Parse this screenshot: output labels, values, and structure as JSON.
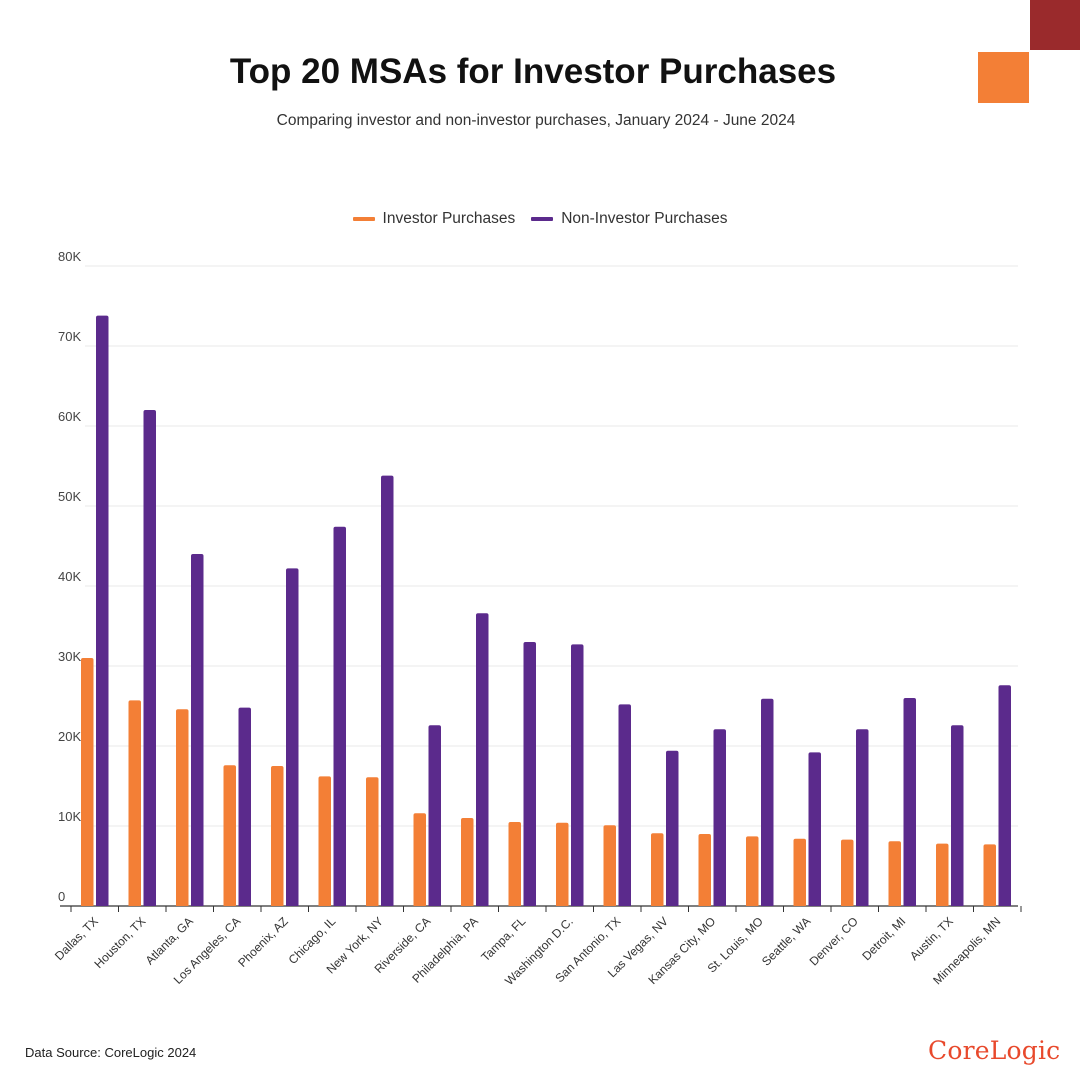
{
  "title": "Top 20 MSAs for Investor Purchases",
  "subtitle": "Comparing investor and non-investor purchases, January 2024 - June 2024",
  "legend": {
    "investor": "Investor Purchases",
    "non_investor": "Non-Investor Purchases"
  },
  "colors": {
    "investor": "#f37f36",
    "non_investor": "#5b2a8c",
    "accent_dark": "#9a2a2c",
    "brand": "#e8492c"
  },
  "source": "Data Source: CoreLogic 2024",
  "brand": "CoreLogic",
  "chart_data": {
    "type": "bar",
    "title": "Top 20 MSAs for Investor Purchases",
    "xlabel": "",
    "ylabel": "",
    "ylim": [
      0,
      80000
    ],
    "yticks": [
      0,
      10000,
      20000,
      30000,
      40000,
      50000,
      60000,
      70000,
      80000
    ],
    "ytick_labels": [
      "0",
      "10K",
      "20K",
      "30K",
      "40K",
      "50K",
      "60K",
      "70K",
      "80K"
    ],
    "grid": true,
    "legend_position": "top-center",
    "categories": [
      "Dallas, TX",
      "Houston, TX",
      "Atlanta, GA",
      "Los Angeles, CA",
      "Phoenix, AZ",
      "Chicago, IL",
      "New York, NY",
      "Riverside, CA",
      "Philadelphia, PA",
      "Tampa, FL",
      "Washington D.C.",
      "San Antonio, TX",
      "Las Vegas, NV",
      "Kansas City, MO",
      "St. Louis, MO",
      "Seattle, WA",
      "Denver, CO",
      "Detroit, MI",
      "Austin, TX",
      "Minneapolis, MN"
    ],
    "series": [
      {
        "name": "Investor Purchases",
        "values": [
          31000,
          25700,
          24600,
          17600,
          17500,
          16200,
          16100,
          11600,
          11000,
          10500,
          10400,
          10100,
          9100,
          9000,
          8700,
          8400,
          8300,
          8100,
          7800,
          7700
        ]
      },
      {
        "name": "Non-Investor Purchases",
        "values": [
          73800,
          62000,
          44000,
          24800,
          42200,
          47400,
          53800,
          22600,
          36600,
          33000,
          32700,
          25200,
          19400,
          22100,
          25900,
          19200,
          22100,
          26000,
          22600,
          27600
        ]
      }
    ]
  }
}
